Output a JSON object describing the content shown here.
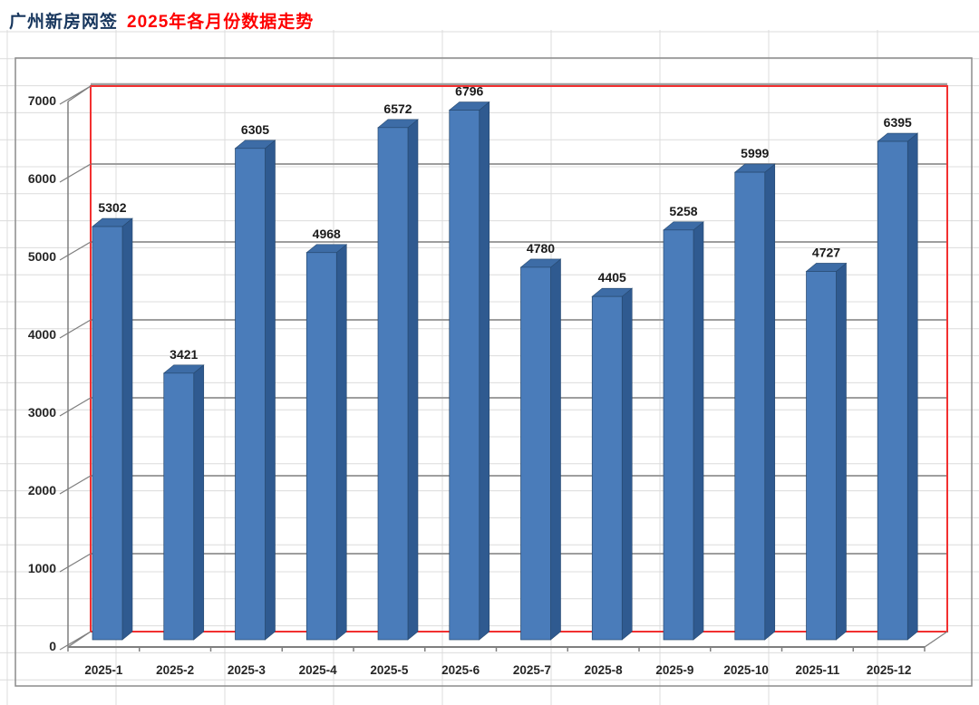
{
  "title": {
    "part1": "广州新房网签",
    "part2": "2025年各月份数据走势"
  },
  "colors": {
    "title_navy": "#17365d",
    "title_red": "#fe0000",
    "bar_front": "#4a7cba",
    "bar_side": "#2f5a90",
    "bar_top": "#3d6ca6",
    "bar_edge": "#27496f",
    "wall_border_red": "#f23030",
    "gridline_major": "#9e9e9e",
    "axis_line": "#7f7f7f",
    "sheet_line": "#dcdcdc",
    "chart_frame": "#8c8c8c",
    "value_label": "#1a1a1a",
    "tick_label": "#262626"
  },
  "chart_data": {
    "type": "bar",
    "style": "excel-3d-clustered-column",
    "title": "广州新房网签 2025年各月份数据走势",
    "categories": [
      "2025-1",
      "2025-2",
      "2025-3",
      "2025-4",
      "2025-5",
      "2025-6",
      "2025-7",
      "2025-8",
      "2025-9",
      "2025-10",
      "2025-11",
      "2025-12"
    ],
    "values": [
      5302,
      3421,
      6305,
      4968,
      6572,
      6796,
      4780,
      4405,
      5258,
      5999,
      4727,
      6395
    ],
    "data_labels": true,
    "xlabel": "",
    "ylabel": "",
    "ylim": [
      0,
      7000
    ],
    "yticks": [
      0,
      1000,
      2000,
      3000,
      4000,
      5000,
      6000,
      7000
    ],
    "grid": true,
    "legend_position": "none"
  }
}
